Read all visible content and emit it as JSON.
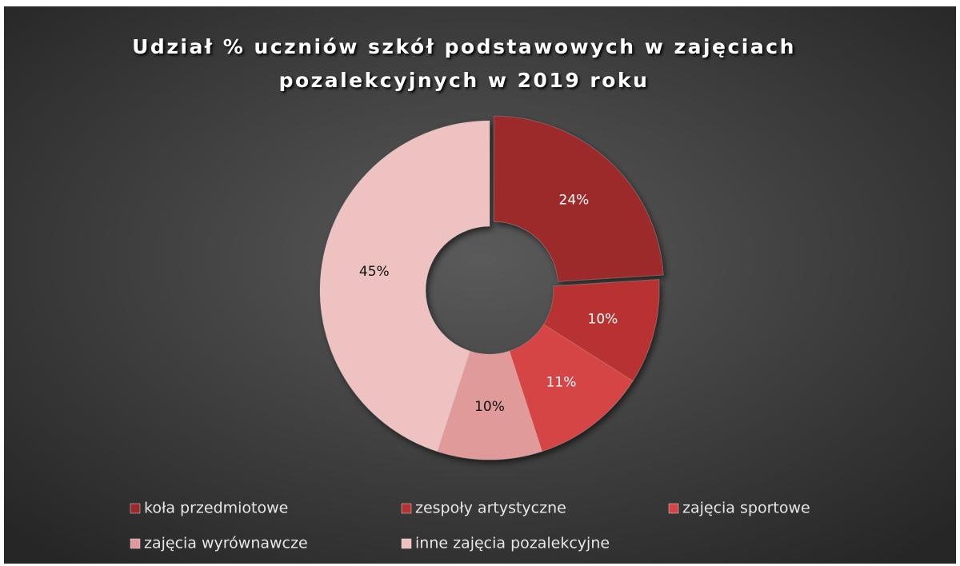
{
  "chart_data": {
    "type": "donut",
    "title": "Udział % uczniów szkół podstawowych  w zajęciach pozalekcyjnych w 2019 roku",
    "categories": [
      "koła przedmiotowe",
      "zespoły artystyczne",
      "zajęcia sportowe",
      "zajęcia wyrównawcze",
      "inne zajęcia pozalekcyjne"
    ],
    "values": [
      24,
      10,
      11,
      10,
      45
    ],
    "value_labels": [
      "24%",
      "10%",
      "11%",
      "10%",
      "45%"
    ],
    "colors": [
      "#9c2a2a",
      "#b83232",
      "#d64545",
      "#e09a9a",
      "#efc2c2"
    ],
    "legend": "bottom"
  }
}
